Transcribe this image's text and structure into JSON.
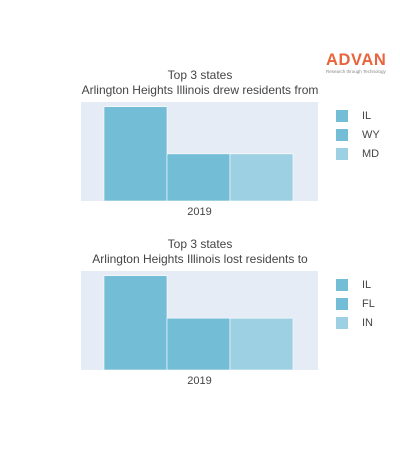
{
  "logo": {
    "text": "ADVAN",
    "tagline": "Research through Technology"
  },
  "chart_data": [
    {
      "type": "bar",
      "title": "Top 3 states",
      "subtitle": "Arlington Heights Illinois drew residents from",
      "categories": [
        "2019"
      ],
      "barmode": "group",
      "ylim": [
        0,
        1.05
      ],
      "grid": false,
      "legend_position": "right",
      "series": [
        {
          "name": "IL",
          "values": [
            1.0
          ],
          "color": "#73bdd6"
        },
        {
          "name": "WY",
          "values": [
            0.5
          ],
          "color": "#73bdd6"
        },
        {
          "name": "MD",
          "values": [
            0.5
          ],
          "color": "#9ed0e3"
        }
      ]
    },
    {
      "type": "bar",
      "title": "Top 3 states",
      "subtitle": "Arlington Heights Illinois lost residents to",
      "categories": [
        "2019"
      ],
      "barmode": "group",
      "ylim": [
        0,
        1.05
      ],
      "grid": false,
      "legend_position": "right",
      "series": [
        {
          "name": "IL",
          "values": [
            1.0
          ],
          "color": "#73bdd6"
        },
        {
          "name": "FL",
          "values": [
            0.55
          ],
          "color": "#73bdd6"
        },
        {
          "name": "IN",
          "values": [
            0.55
          ],
          "color": "#9ed0e3"
        }
      ]
    }
  ],
  "colors": {
    "plot_background": "#e6ecf5",
    "bar_outline": "#ffffff"
  }
}
